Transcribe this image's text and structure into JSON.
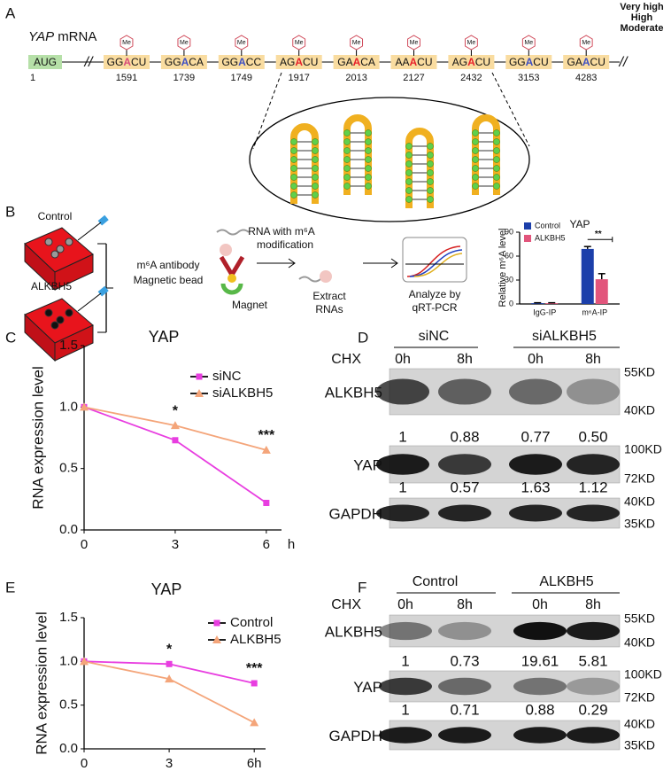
{
  "panel_a": {
    "label": "A",
    "gene": "YAP",
    "title_rest": "mRNA",
    "legend": [
      {
        "name": "Very high",
        "color": "#e8202a"
      },
      {
        "name": "High",
        "color": "#c0479a"
      },
      {
        "name": "Moderate",
        "color": "#3d4fc4"
      }
    ],
    "me": "Me",
    "start": {
      "seq": "AUG",
      "pos": "1"
    },
    "sites": [
      {
        "seq": [
          "GG",
          "A",
          "CU"
        ],
        "pos": "1591",
        "color": "#d84b7a"
      },
      {
        "seq": [
          "GG",
          "A",
          "CA"
        ],
        "pos": "1739",
        "color": "#3d4fc4"
      },
      {
        "seq": [
          "GG",
          "A",
          "CC"
        ],
        "pos": "1749",
        "color": "#3d4fc4"
      },
      {
        "seq": [
          "AG",
          "A",
          "CU"
        ],
        "pos": "1917",
        "color": "#e8202a"
      },
      {
        "seq": [
          "GA",
          "A",
          "CA"
        ],
        "pos": "2013",
        "color": "#e8202a"
      },
      {
        "seq": [
          "AA",
          "A",
          "CU"
        ],
        "pos": "2127",
        "color": "#e8202a"
      },
      {
        "seq": [
          "AG",
          "A",
          "CU"
        ],
        "pos": "2432",
        "color": "#e8202a"
      },
      {
        "seq": [
          "GG",
          "A",
          "CU"
        ],
        "pos": "3153",
        "color": "#3d4fc4"
      },
      {
        "seq": [
          "GA",
          "A",
          "CU"
        ],
        "pos": "4283",
        "color": "#3d4fc4"
      }
    ]
  },
  "panel_b": {
    "label": "B",
    "control": "Control",
    "treatment": "ALKBH5",
    "step1": [
      "m⁶A antibody",
      "Magnetic bead"
    ],
    "rna": [
      "RNA with m⁶A",
      "modification"
    ],
    "magnet": "Magnet",
    "extract": [
      "Extract",
      "RNAs"
    ],
    "analyze": [
      "Analyze by",
      "qRT-PCR"
    ]
  },
  "panel_c": {
    "label": "C"
  },
  "panel_d": {
    "label": "D",
    "groups": [
      "siNC",
      "siALKBH5"
    ],
    "chx": "CHX",
    "times": [
      "0h",
      "8h",
      "0h",
      "8h"
    ],
    "rows": [
      {
        "name": "ALKBH5",
        "markers": [
          "55KD",
          "40KD"
        ],
        "quant": [
          "1",
          "0.88",
          "0.77",
          "0.50"
        ]
      },
      {
        "name": "YAP",
        "markers": [
          "100KD",
          "72KD"
        ],
        "quant": [
          "1",
          "0.57",
          "1.63",
          "1.12"
        ]
      },
      {
        "name": "GAPDH",
        "markers": [
          "40KD",
          "35KD"
        ]
      }
    ]
  },
  "panel_e": {
    "label": "E"
  },
  "panel_f": {
    "label": "F",
    "groups": [
      "Control",
      "ALKBH5"
    ],
    "chx": "CHX",
    "times": [
      "0h",
      "8h",
      "0h",
      "8h"
    ],
    "rows": [
      {
        "name": "ALKBH5",
        "markers": [
          "55KD",
          "40KD"
        ],
        "quant": [
          "1",
          "0.73",
          "19.61",
          "5.81"
        ]
      },
      {
        "name": "YAP",
        "markers": [
          "100KD",
          "72KD"
        ],
        "quant": [
          "1",
          "0.71",
          "0.88",
          "0.29"
        ]
      },
      {
        "name": "GAPDH",
        "markers": [
          "40KD",
          "35KD"
        ]
      }
    ]
  },
  "chart_data": [
    {
      "type": "bar",
      "title": "YAP",
      "y_label": "Relative m⁶A level",
      "categories": [
        "IgG-IP",
        "m⁶A-IP"
      ],
      "series": [
        {
          "name": "Control",
          "color": "#1c3faa",
          "values": [
            1,
            69
          ],
          "errors": [
            0.5,
            3
          ]
        },
        {
          "name": "ALKBH5",
          "color": "#e2557c",
          "values": [
            1,
            31
          ],
          "errors": [
            0.5,
            7
          ]
        }
      ],
      "ylim": [
        0,
        90
      ],
      "yticks": [
        0,
        30,
        60,
        90
      ],
      "annotation": "**"
    },
    {
      "type": "line",
      "title": "YAP",
      "y_label": "RNA expression level",
      "x_label": "h",
      "x": [
        0,
        3,
        6
      ],
      "series": [
        {
          "name": "siNC",
          "color": "#e83ee0",
          "marker": "square",
          "values": [
            1,
            0.73,
            0.22
          ]
        },
        {
          "name": "siALKBH5",
          "color": "#f4a57a",
          "marker": "triangle",
          "values": [
            1,
            0.85,
            0.65
          ]
        }
      ],
      "xlim": [
        0,
        6.5
      ],
      "ylim": [
        0,
        1.5
      ],
      "xticks": [
        0,
        3,
        6
      ],
      "yticks": [
        {
          "value": 0,
          "label": "0.0"
        },
        0.5,
        {
          "value": 1,
          "label": "1.0"
        },
        1.5
      ],
      "annotations": [
        {
          "x": 3,
          "text": "*"
        },
        {
          "x": 6,
          "text": "***"
        }
      ]
    },
    {
      "type": "line",
      "title": "YAP",
      "y_label": "RNA expression level",
      "x": [
        0,
        3,
        6
      ],
      "series": [
        {
          "name": "Control",
          "color": "#e83ee0",
          "marker": "square",
          "values": [
            1,
            0.97,
            0.75
          ]
        },
        {
          "name": "ALKBH5",
          "color": "#f4a57a",
          "marker": "triangle",
          "values": [
            1,
            0.8,
            0.3
          ]
        }
      ],
      "xlim": [
        0,
        6.4
      ],
      "ylim": [
        0,
        1.5
      ],
      "xticks": [
        0,
        3,
        {
          "value": 6,
          "label": "6h"
        }
      ],
      "yticks": [
        {
          "value": 0,
          "label": "0.0"
        },
        0.5,
        {
          "value": 1,
          "label": "1.0"
        },
        1.5
      ],
      "annotations": [
        {
          "x": 3,
          "text": "*"
        },
        {
          "x": 6,
          "text": "***"
        }
      ]
    }
  ]
}
